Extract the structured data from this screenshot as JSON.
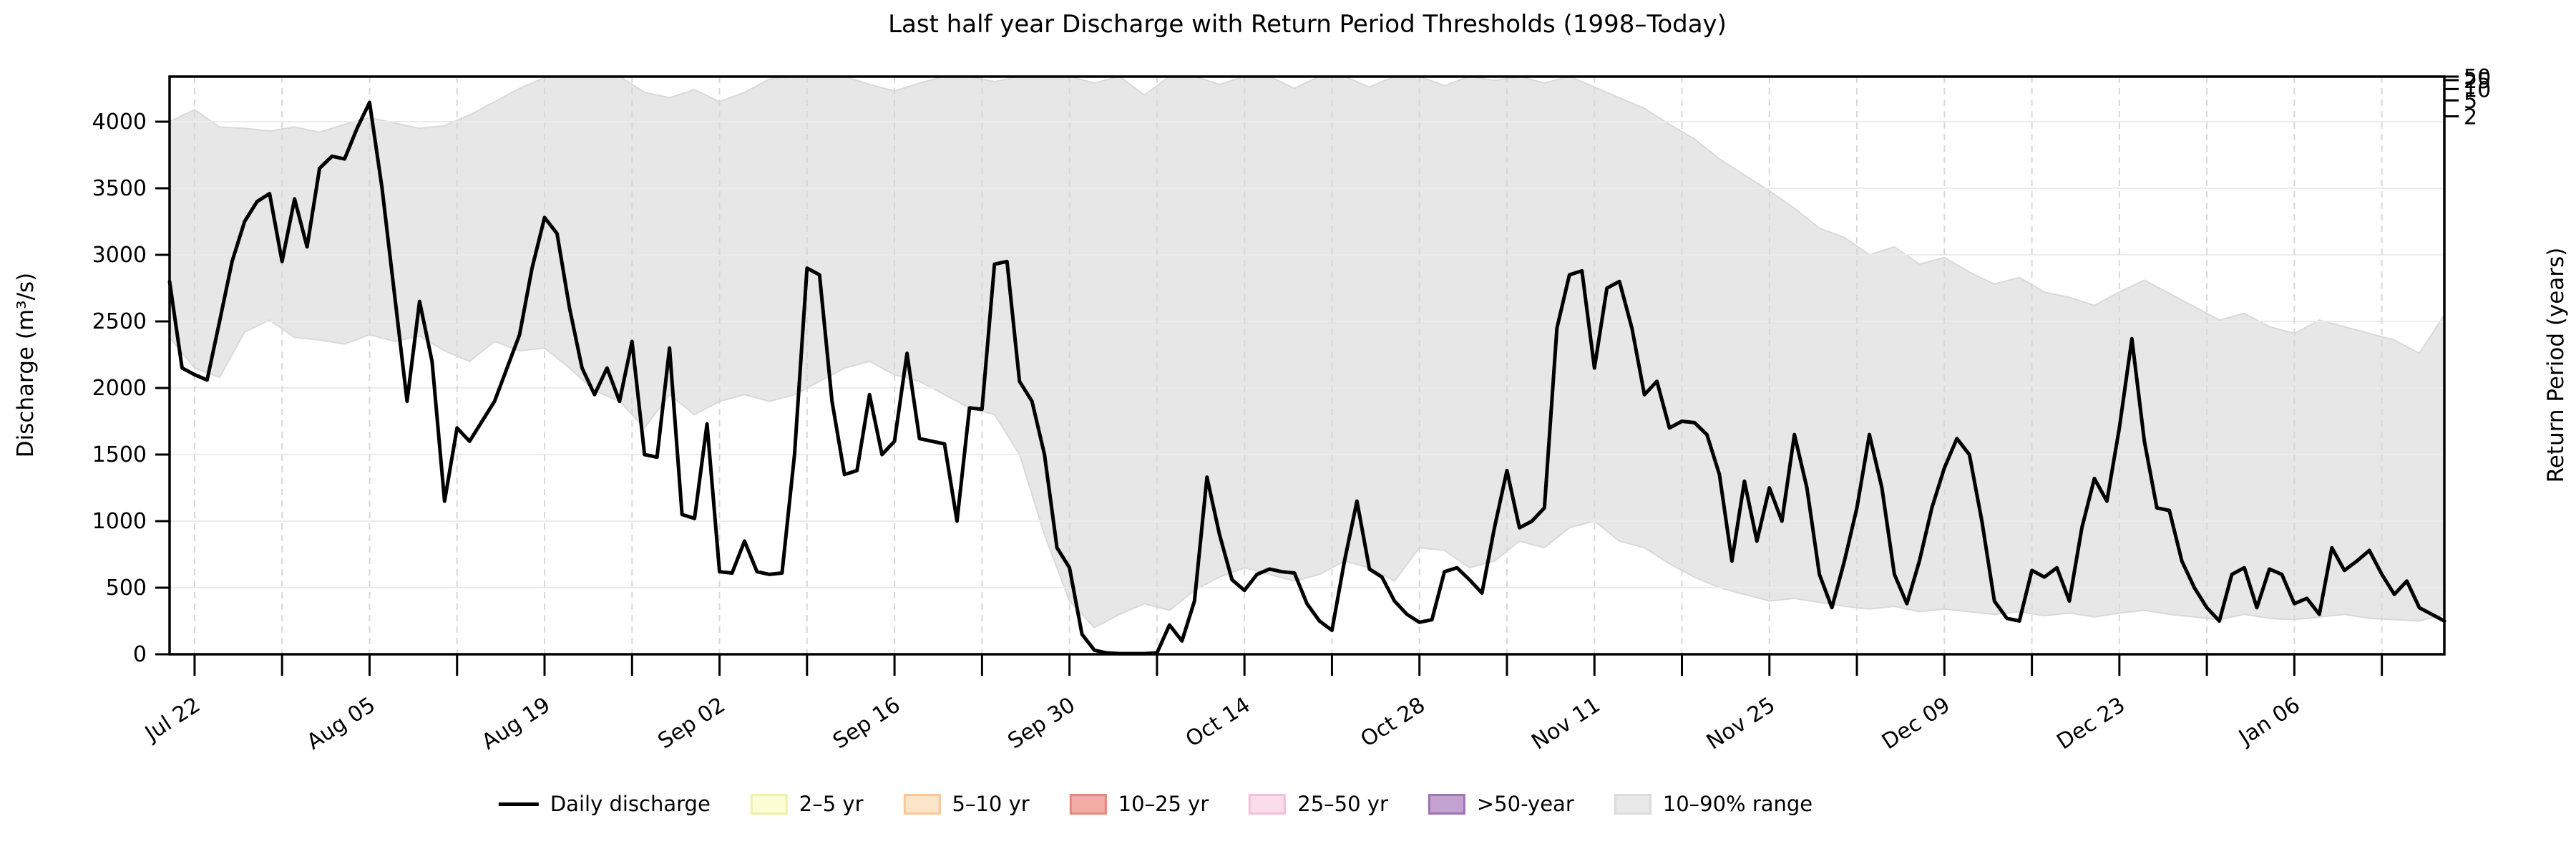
{
  "figure": {
    "title": "Last half year Discharge with Return Period Thresholds (1998–Today)",
    "background": "#ffffff"
  },
  "axes": {
    "left": {
      "label": "Discharge (m³/s)"
    },
    "right": {
      "label": "Return Period (years)"
    }
  },
  "chart_data": {
    "type": "line",
    "title": "Last half year Discharge with Return Period Thresholds (1998–Today)",
    "ylabel": "Discharge (m³/s)",
    "y2label": "Return Period (years)",
    "ylim": [
      0,
      4340
    ],
    "yticks": [
      0,
      500,
      1000,
      1500,
      2000,
      2500,
      3000,
      3500,
      4000
    ],
    "x_unit": "days (daily values, day 0 = first shown day)",
    "x_domain_days": [
      0,
      182
    ],
    "x_tick_days": [
      2,
      9,
      16,
      23,
      30,
      37,
      44,
      51,
      58,
      65,
      72,
      79,
      86,
      93,
      100,
      107,
      114,
      121,
      128,
      135,
      142,
      149,
      156,
      163,
      170,
      177
    ],
    "x_tick_labels": [
      {
        "day": 2,
        "label": "Jul 22"
      },
      {
        "day": 16,
        "label": "Aug 05"
      },
      {
        "day": 30,
        "label": "Aug 19"
      },
      {
        "day": 44,
        "label": "Sep 02"
      },
      {
        "day": 58,
        "label": "Sep 16"
      },
      {
        "day": 72,
        "label": "Sep 30"
      },
      {
        "day": 86,
        "label": "Oct 14"
      },
      {
        "day": 100,
        "label": "Oct 28"
      },
      {
        "day": 114,
        "label": "Nov 11"
      },
      {
        "day": 128,
        "label": "Nov 25"
      },
      {
        "day": 142,
        "label": "Dec 09"
      },
      {
        "day": 156,
        "label": "Dec 23"
      },
      {
        "day": 170,
        "label": "Jan 06"
      }
    ],
    "grid": {
      "horizontal_color": "#ececec",
      "vertical_color": "#d8d8d8",
      "vertical_dashed": true
    },
    "series": [
      {
        "name": "Daily discharge",
        "type": "line",
        "color": "#000000",
        "linewidth": 5,
        "values": [
          2800,
          2150,
          2100,
          2060,
          2500,
          2950,
          3250,
          3400,
          3460,
          2950,
          3420,
          3060,
          3650,
          3740,
          3720,
          3950,
          4145,
          3500,
          2700,
          1900,
          2650,
          2200,
          1150,
          1700,
          1600,
          1750,
          1900,
          2150,
          2400,
          2900,
          3280,
          3160,
          2600,
          2150,
          1950,
          2150,
          1900,
          2350,
          1500,
          1480,
          2300,
          1050,
          1020,
          1730,
          620,
          610,
          850,
          620,
          600,
          610,
          1500,
          2900,
          2850,
          1900,
          1350,
          1380,
          1950,
          1500,
          1600,
          2260,
          1620,
          1600,
          1580,
          1000,
          1850,
          1840,
          2930,
          2950,
          2050,
          1900,
          1500,
          800,
          650,
          150,
          30,
          10,
          5,
          5,
          5,
          10,
          220,
          100,
          400,
          1330,
          900,
          560,
          480,
          600,
          640,
          620,
          610,
          380,
          250,
          180,
          700,
          1150,
          640,
          580,
          400,
          300,
          240,
          260,
          620,
          650,
          560,
          460,
          950,
          1380,
          950,
          1000,
          1100,
          2450,
          2850,
          2880,
          2150,
          2750,
          2800,
          2450,
          1950,
          2050,
          1700,
          1750,
          1740,
          1650,
          1350,
          700,
          1300,
          850,
          1250,
          1000,
          1650,
          1250,
          600,
          350,
          700,
          1100,
          1650,
          1250,
          600,
          380,
          700,
          1100,
          1400,
          1620,
          1500,
          1000,
          400,
          270,
          250,
          630,
          580,
          650,
          400,
          950,
          1320,
          1150,
          1700,
          2370,
          1600,
          1100,
          1080,
          700,
          500,
          350,
          250,
          600,
          650,
          350,
          640,
          600,
          380,
          420,
          300,
          800,
          630,
          700,
          780,
          600,
          450,
          550,
          350,
          300,
          250
        ]
      }
    ],
    "band": {
      "name": "10–90% range",
      "fill": "#e7e7e7",
      "edge": "#d9d9d9",
      "days": [
        0,
        2,
        4,
        6,
        8,
        10,
        12,
        14,
        16,
        18,
        20,
        22,
        24,
        26,
        28,
        30,
        32,
        34,
        36,
        38,
        40,
        42,
        44,
        46,
        48,
        50,
        52,
        54,
        56,
        58,
        60,
        62,
        64,
        66,
        68,
        70,
        72,
        74,
        76,
        78,
        80,
        82,
        84,
        86,
        88,
        90,
        92,
        94,
        96,
        98,
        100,
        102,
        104,
        106,
        108,
        110,
        112,
        114,
        116,
        118,
        120,
        122,
        124,
        126,
        128,
        130,
        132,
        134,
        136,
        138,
        140,
        142,
        144,
        146,
        148,
        150,
        152,
        154,
        156,
        158,
        160,
        162,
        164,
        166,
        168,
        170,
        172,
        174,
        176,
        178,
        180,
        182
      ],
      "upper": [
        4000,
        4090,
        3960,
        3950,
        3930,
        3960,
        3920,
        3980,
        4030,
        3990,
        3950,
        3970,
        4050,
        4150,
        4250,
        4330,
        4340,
        4340,
        4340,
        4220,
        4180,
        4240,
        4150,
        4220,
        4320,
        4340,
        4340,
        4340,
        4280,
        4230,
        4290,
        4340,
        4340,
        4300,
        4340,
        4340,
        4340,
        4290,
        4340,
        4200,
        4340,
        4340,
        4280,
        4340,
        4340,
        4250,
        4340,
        4340,
        4260,
        4340,
        4340,
        4270,
        4340,
        4310,
        4340,
        4290,
        4340,
        4260,
        4180,
        4100,
        3980,
        3870,
        3720,
        3600,
        3480,
        3350,
        3200,
        3130,
        3000,
        3060,
        2930,
        2980,
        2870,
        2780,
        2830,
        2720,
        2680,
        2620,
        2720,
        2810,
        2710,
        2610,
        2510,
        2560,
        2460,
        2410,
        2510,
        2460,
        2410,
        2360,
        2260,
        2550
      ],
      "lower": [
        2380,
        2150,
        2080,
        2420,
        2510,
        2380,
        2360,
        2330,
        2400,
        2350,
        2390,
        2280,
        2200,
        2350,
        2280,
        2300,
        2150,
        1980,
        1900,
        1700,
        1950,
        1800,
        1900,
        1950,
        1900,
        1950,
        2050,
        2150,
        2200,
        2100,
        2050,
        1950,
        1850,
        1800,
        1500,
        900,
        400,
        200,
        300,
        380,
        330,
        480,
        580,
        650,
        600,
        550,
        600,
        700,
        650,
        550,
        800,
        780,
        650,
        700,
        850,
        800,
        950,
        1000,
        850,
        800,
        680,
        580,
        500,
        450,
        400,
        420,
        390,
        360,
        340,
        360,
        320,
        340,
        320,
        300,
        320,
        290,
        310,
        280,
        310,
        330,
        300,
        280,
        260,
        300,
        270,
        260,
        280,
        300,
        270,
        260,
        250,
        300
      ]
    },
    "right_axis_ticks": [
      {
        "label": "2",
        "value": 4040
      },
      {
        "label": "5",
        "value": 4160
      },
      {
        "label": "10",
        "value": 4245
      },
      {
        "label": "25",
        "value": 4312
      },
      {
        "label": "50",
        "value": 4349
      }
    ]
  },
  "legend": {
    "items": [
      {
        "label": "Daily discharge",
        "swatch": "line",
        "color": "#000000"
      },
      {
        "label": "2–5 yr",
        "swatch": "patch",
        "fill": "#FDFDD3",
        "edge": "#F0F0A8"
      },
      {
        "label": "5–10 yr",
        "swatch": "patch",
        "fill": "#FCE4C9",
        "edge": "#F9C795"
      },
      {
        "label": "10–25 yr",
        "swatch": "patch",
        "fill": "#F2ABA5",
        "edge": "#E9867E"
      },
      {
        "label": "25–50 yr",
        "swatch": "patch",
        "fill": "#FADCEB",
        "edge": "#F4BFDA"
      },
      {
        "label": ">50-year",
        "swatch": "patch",
        "fill": "#C3A2D2",
        "edge": "#9F73B4"
      },
      {
        "label": "10–90% range",
        "swatch": "patch",
        "fill": "#E8E8E8",
        "edge": "#DCDCDC"
      }
    ]
  }
}
